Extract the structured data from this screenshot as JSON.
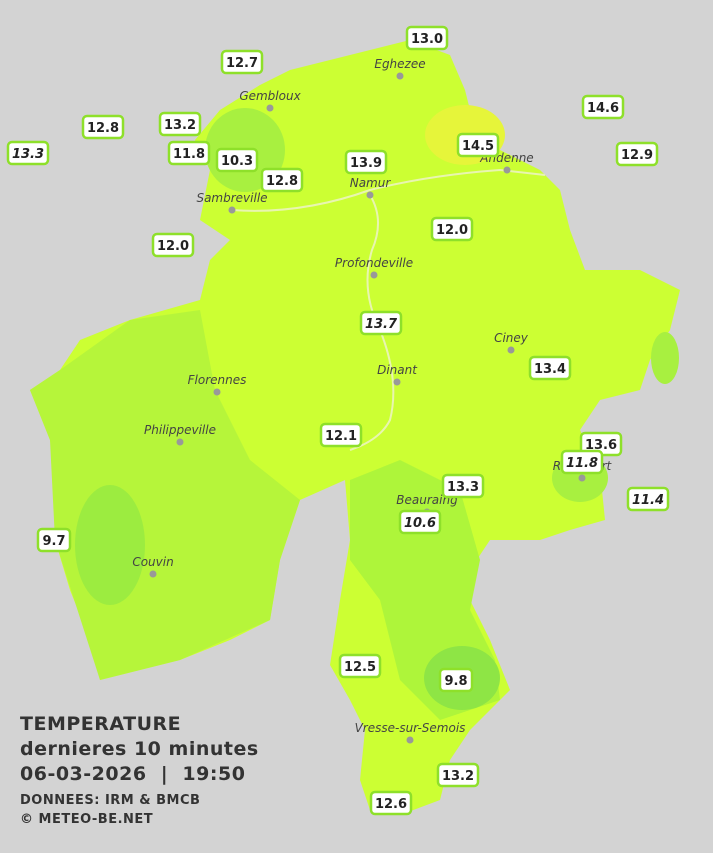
{
  "legend": {
    "title": "TEMPERATURE",
    "subtitle": "dernieres 10 minutes",
    "datetime": "06-03-2026  |  19:50",
    "source": "DONNEES: IRM & BMCB",
    "copyright": "© METEO-BE.NET"
  },
  "cities": [
    "Eghezee",
    "Gembloux",
    "Andenne",
    "Namur",
    "Sambreville",
    "Profondeville",
    "Ciney",
    "Dinant",
    "Florennes",
    "Philippeville",
    "Rochefort",
    "Beauraing",
    "Couvin",
    "Vresse-sur-Semois"
  ],
  "stations": [
    {
      "label": "13.0",
      "italic": false
    },
    {
      "label": "12.7",
      "italic": false
    },
    {
      "label": "14.6",
      "italic": false
    },
    {
      "label": "12.8",
      "italic": false
    },
    {
      "label": "13.2",
      "italic": false
    },
    {
      "label": "13.3",
      "italic": true
    },
    {
      "label": "11.8",
      "italic": false
    },
    {
      "label": "10.3",
      "italic": false
    },
    {
      "label": "14.5",
      "italic": false
    },
    {
      "label": "12.9",
      "italic": false
    },
    {
      "label": "13.9",
      "italic": false
    },
    {
      "label": "12.8",
      "italic": false
    },
    {
      "label": "12.0",
      "italic": false
    },
    {
      "label": "12.0",
      "italic": false
    },
    {
      "label": "13.7",
      "italic": true
    },
    {
      "label": "13.4",
      "italic": false
    },
    {
      "label": "12.1",
      "italic": false
    },
    {
      "label": "13.6",
      "italic": false
    },
    {
      "label": "11.8",
      "italic": true
    },
    {
      "label": "13.3",
      "italic": false
    },
    {
      "label": "11.4",
      "italic": true
    },
    {
      "label": "10.6",
      "italic": true
    },
    {
      "label": "9.7",
      "italic": false
    },
    {
      "label": "12.5",
      "italic": false
    },
    {
      "label": "9.8",
      "italic": false
    },
    {
      "label": "13.2",
      "italic": false
    },
    {
      "label": "12.6",
      "italic": false
    }
  ]
}
